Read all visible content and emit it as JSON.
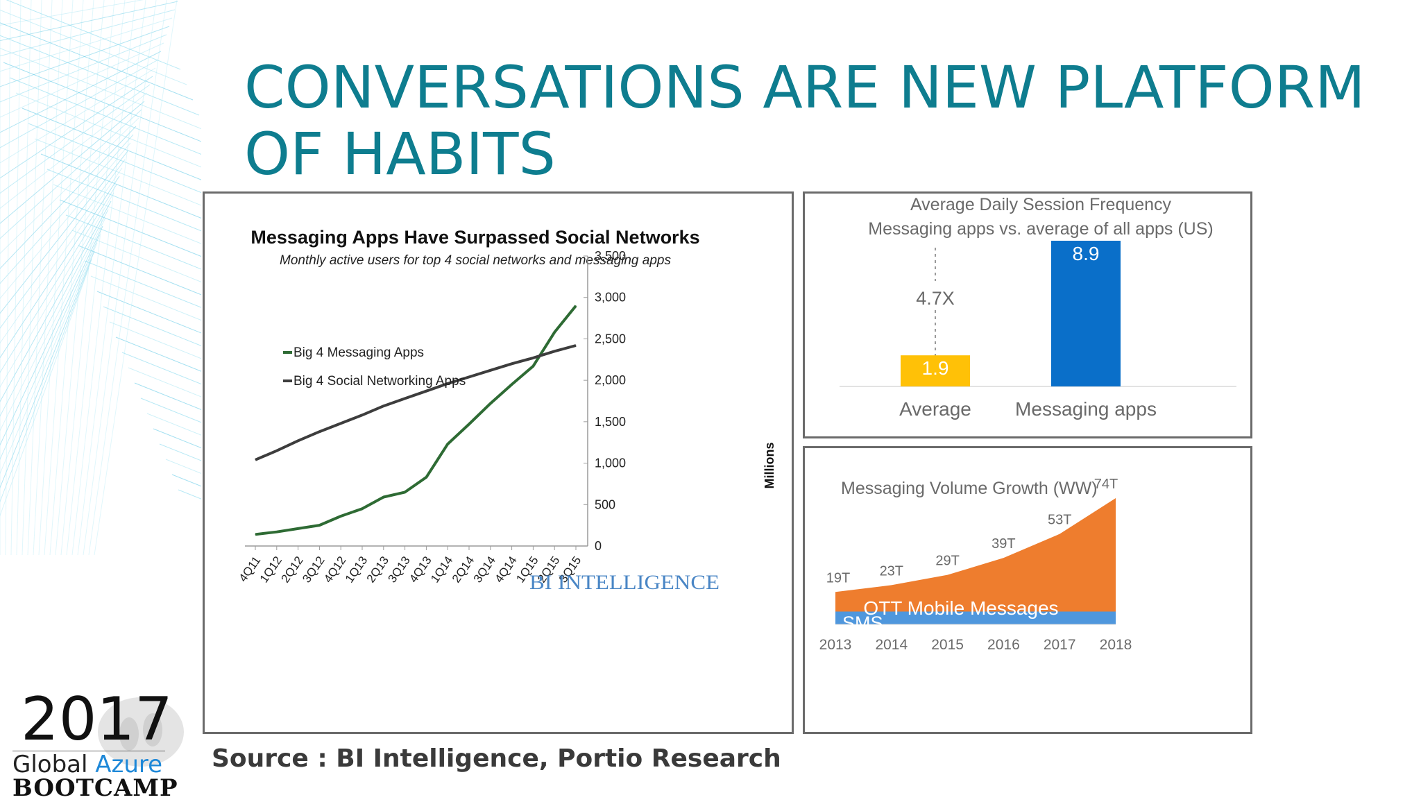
{
  "slide": {
    "title_line1": "CONVERSATIONS ARE NEW PLATFORM",
    "title_line2": "OF HABITS",
    "source": "Source : BI Intelligence, Portio Research",
    "logo": {
      "year": "2017",
      "line1_a": "Global ",
      "line1_b": "Azure",
      "line2": "BOOTCAMP"
    },
    "colors": {
      "title": "#0e7d8f",
      "messaging_line": "#2e6b34",
      "social_line": "#3d3d3d",
      "avg_bar": "#ffc107",
      "msg_bar": "#0a6fc9",
      "ott_area": "#ee7d2e",
      "sms_area": "#4f97dd",
      "watermark": "#4a86c5"
    }
  },
  "chart_data": [
    {
      "type": "line",
      "title": "Messaging Apps Have Surpassed Social Networks",
      "subtitle": "Monthly active users for top 4 social networks and messaging apps",
      "ylabel": "Millions",
      "ylim": [
        0,
        3500
      ],
      "yticks": [
        "0",
        "500",
        "1,000",
        "1,500",
        "2,000",
        "2,500",
        "3,000",
        "3,500"
      ],
      "yticks_values": [
        0,
        500,
        1000,
        1500,
        2000,
        2500,
        3000,
        3500
      ],
      "categories": [
        "4Q11",
        "1Q12",
        "2Q12",
        "3Q12",
        "4Q12",
        "1Q13",
        "2Q13",
        "3Q13",
        "4Q13",
        "1Q14",
        "2Q14",
        "3Q14",
        "4Q14",
        "1Q15",
        "2Q15",
        "3Q15"
      ],
      "legend_position": "left",
      "watermark": "BI INTELLIGENCE",
      "series": [
        {
          "name": "Big 4 Messaging Apps",
          "values": [
            140,
            170,
            210,
            250,
            360,
            450,
            590,
            650,
            830,
            1230,
            1470,
            1720,
            1950,
            2170,
            2580,
            2900
          ]
        },
        {
          "name": "Big 4 Social Networking Apps",
          "values": [
            1040,
            1150,
            1270,
            1380,
            1480,
            1580,
            1690,
            1780,
            1870,
            1960,
            2040,
            2120,
            2200,
            2270,
            2350,
            2420
          ]
        }
      ]
    },
    {
      "type": "bar",
      "title": "Average Daily Session Frequency",
      "subtitle": "Messaging apps vs. average of all apps (US)",
      "categories": [
        "Average",
        "Messaging apps"
      ],
      "values": [
        1.9,
        8.9
      ],
      "value_labels": [
        "1.9",
        "8.9"
      ],
      "annotation": "4.7X",
      "ylim": [
        0,
        8.9
      ]
    },
    {
      "type": "area",
      "title": "Messaging Volume Growth (WW)",
      "categories": [
        "2013",
        "2014",
        "2015",
        "2016",
        "2017",
        "2018"
      ],
      "total_labels": [
        "19T",
        "23T",
        "29T",
        "39T",
        "53T",
        "74T"
      ],
      "series": [
        {
          "name": "SMS",
          "values": [
            7.5,
            7.5,
            7.5,
            7.5,
            7.5,
            7.5
          ]
        },
        {
          "name": "OTT Mobile Messages",
          "values": [
            11.5,
            15.5,
            21.5,
            31.5,
            45.5,
            66.5
          ]
        }
      ],
      "totals": [
        19,
        23,
        29,
        39,
        53,
        74
      ],
      "ylim": [
        0,
        74
      ]
    }
  ]
}
